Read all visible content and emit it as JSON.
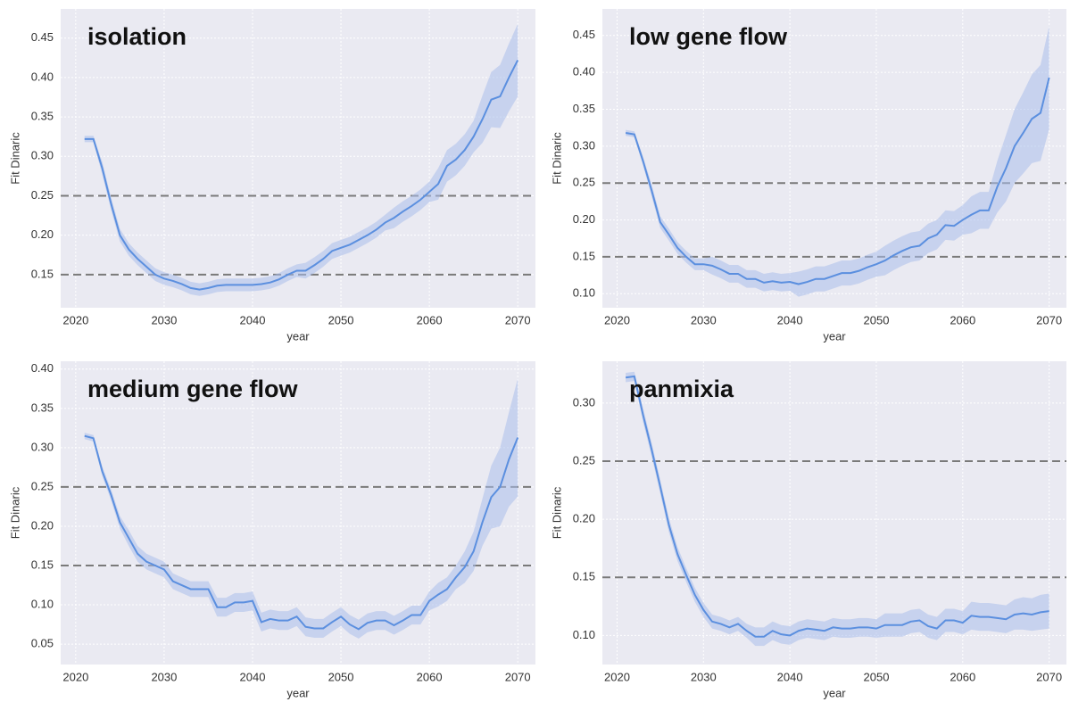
{
  "chart_data": [
    {
      "type": "line",
      "title": "isolation",
      "xlabel": "year",
      "ylabel": "Fit Dinaric",
      "x": [
        2021,
        2022,
        2023,
        2024,
        2025,
        2026,
        2027,
        2028,
        2029,
        2030,
        2031,
        2032,
        2033,
        2034,
        2035,
        2036,
        2037,
        2038,
        2039,
        2040,
        2041,
        2042,
        2043,
        2044,
        2045,
        2046,
        2047,
        2048,
        2049,
        2050,
        2051,
        2052,
        2053,
        2054,
        2055,
        2056,
        2057,
        2058,
        2059,
        2060,
        2061,
        2062,
        2063,
        2064,
        2065,
        2066,
        2067,
        2068,
        2069,
        2070
      ],
      "values": [
        0.322,
        0.322,
        0.285,
        0.24,
        0.2,
        0.182,
        0.17,
        0.16,
        0.15,
        0.145,
        0.142,
        0.138,
        0.133,
        0.131,
        0.133,
        0.136,
        0.137,
        0.137,
        0.137,
        0.137,
        0.138,
        0.14,
        0.144,
        0.15,
        0.155,
        0.155,
        0.162,
        0.17,
        0.18,
        0.184,
        0.188,
        0.194,
        0.2,
        0.207,
        0.216,
        0.222,
        0.23,
        0.237,
        0.245,
        0.255,
        0.265,
        0.288,
        0.296,
        0.308,
        0.325,
        0.347,
        0.372,
        0.376,
        0.4,
        0.422
      ],
      "lower": [
        0.318,
        0.318,
        0.277,
        0.232,
        0.192,
        0.174,
        0.162,
        0.152,
        0.142,
        0.137,
        0.134,
        0.13,
        0.125,
        0.123,
        0.125,
        0.128,
        0.129,
        0.129,
        0.129,
        0.129,
        0.13,
        0.132,
        0.136,
        0.142,
        0.147,
        0.145,
        0.152,
        0.16,
        0.17,
        0.174,
        0.178,
        0.184,
        0.19,
        0.197,
        0.206,
        0.209,
        0.217,
        0.224,
        0.232,
        0.242,
        0.245,
        0.268,
        0.276,
        0.288,
        0.305,
        0.317,
        0.337,
        0.336,
        0.357,
        0.376
      ],
      "upper": [
        0.326,
        0.326,
        0.293,
        0.248,
        0.208,
        0.19,
        0.178,
        0.168,
        0.158,
        0.153,
        0.15,
        0.146,
        0.141,
        0.139,
        0.141,
        0.144,
        0.145,
        0.145,
        0.145,
        0.145,
        0.146,
        0.148,
        0.152,
        0.158,
        0.163,
        0.165,
        0.172,
        0.18,
        0.19,
        0.194,
        0.198,
        0.204,
        0.21,
        0.217,
        0.226,
        0.235,
        0.243,
        0.25,
        0.258,
        0.268,
        0.285,
        0.308,
        0.316,
        0.328,
        0.345,
        0.377,
        0.407,
        0.416,
        0.443,
        0.468
      ],
      "color": "#5b8fdf",
      "band_color": "#a9bdeb",
      "hlines": [
        0.15,
        0.25
      ],
      "grid": true,
      "xlim": [
        2018.3,
        2072
      ],
      "xticks": [
        2020,
        2030,
        2040,
        2050,
        2060,
        2070
      ],
      "ylim": [
        0.108,
        0.487
      ],
      "yticks": [
        0.15,
        {
          "value": 0.2,
          "label": "0.20"
        },
        0.25,
        {
          "value": 0.3,
          "label": "0.30"
        },
        0.35,
        {
          "value": 0.4,
          "label": "0.40"
        },
        0.45
      ]
    },
    {
      "type": "line",
      "title": "low gene flow",
      "xlabel": "year",
      "ylabel": "Fit Dinaric",
      "x": [
        2021,
        2022,
        2023,
        2024,
        2025,
        2026,
        2027,
        2028,
        2029,
        2030,
        2031,
        2032,
        2033,
        2034,
        2035,
        2036,
        2037,
        2038,
        2039,
        2040,
        2041,
        2042,
        2043,
        2044,
        2045,
        2046,
        2047,
        2048,
        2049,
        2050,
        2051,
        2052,
        2053,
        2054,
        2055,
        2056,
        2057,
        2058,
        2059,
        2060,
        2061,
        2062,
        2063,
        2064,
        2065,
        2066,
        2067,
        2068,
        2069,
        2070
      ],
      "values": [
        0.318,
        0.316,
        0.28,
        0.24,
        0.197,
        0.18,
        0.162,
        0.15,
        0.14,
        0.14,
        0.138,
        0.133,
        0.127,
        0.127,
        0.12,
        0.12,
        0.115,
        0.117,
        0.115,
        0.116,
        0.113,
        0.116,
        0.12,
        0.12,
        0.124,
        0.128,
        0.128,
        0.131,
        0.136,
        0.14,
        0.145,
        0.152,
        0.158,
        0.163,
        0.165,
        0.175,
        0.18,
        0.193,
        0.192,
        0.2,
        0.207,
        0.213,
        0.213,
        0.245,
        0.27,
        0.3,
        0.318,
        0.337,
        0.345,
        0.393
      ],
      "lower": [
        0.314,
        0.312,
        0.274,
        0.232,
        0.189,
        0.172,
        0.154,
        0.142,
        0.132,
        0.132,
        0.126,
        0.121,
        0.115,
        0.115,
        0.108,
        0.108,
        0.103,
        0.105,
        0.103,
        0.104,
        0.096,
        0.099,
        0.103,
        0.103,
        0.107,
        0.111,
        0.111,
        0.114,
        0.119,
        0.123,
        0.125,
        0.132,
        0.138,
        0.143,
        0.145,
        0.155,
        0.16,
        0.173,
        0.172,
        0.18,
        0.182,
        0.188,
        0.188,
        0.21,
        0.225,
        0.25,
        0.263,
        0.277,
        0.28,
        0.323
      ],
      "upper": [
        0.322,
        0.32,
        0.286,
        0.248,
        0.205,
        0.188,
        0.17,
        0.158,
        0.148,
        0.148,
        0.15,
        0.145,
        0.139,
        0.139,
        0.132,
        0.132,
        0.127,
        0.129,
        0.127,
        0.128,
        0.13,
        0.133,
        0.137,
        0.137,
        0.141,
        0.145,
        0.145,
        0.148,
        0.153,
        0.157,
        0.165,
        0.172,
        0.178,
        0.183,
        0.185,
        0.195,
        0.2,
        0.213,
        0.212,
        0.22,
        0.232,
        0.238,
        0.238,
        0.28,
        0.315,
        0.35,
        0.373,
        0.397,
        0.41,
        0.463
      ],
      "color": "#5b8fdf",
      "band_color": "#a9bdeb",
      "hlines": [
        0.15,
        0.25
      ],
      "grid": true,
      "xlim": [
        2018.3,
        2072
      ],
      "xticks": [
        2020,
        2030,
        2040,
        2050,
        2060,
        2070
      ],
      "ylim": [
        0.081,
        0.486
      ],
      "yticks": [
        {
          "value": 0.1,
          "label": "0.10"
        },
        0.15,
        {
          "value": 0.2,
          "label": "0.20"
        },
        0.25,
        {
          "value": 0.3,
          "label": "0.30"
        },
        0.35,
        {
          "value": 0.4,
          "label": "0.40"
        },
        0.45
      ]
    },
    {
      "type": "line",
      "title": "medium gene flow",
      "xlabel": "year",
      "ylabel": "Fit Dinaric",
      "x": [
        2021,
        2022,
        2023,
        2024,
        2025,
        2026,
        2027,
        2028,
        2029,
        2030,
        2031,
        2032,
        2033,
        2034,
        2035,
        2036,
        2037,
        2038,
        2039,
        2040,
        2041,
        2042,
        2043,
        2044,
        2045,
        2046,
        2047,
        2048,
        2049,
        2050,
        2051,
        2052,
        2053,
        2054,
        2055,
        2056,
        2057,
        2058,
        2059,
        2060,
        2061,
        2062,
        2063,
        2064,
        2065,
        2066,
        2067,
        2068,
        2069,
        2070
      ],
      "values": [
        0.315,
        0.312,
        0.27,
        0.24,
        0.205,
        0.185,
        0.165,
        0.155,
        0.15,
        0.145,
        0.13,
        0.125,
        0.12,
        0.12,
        0.12,
        0.097,
        0.097,
        0.103,
        0.103,
        0.105,
        0.078,
        0.082,
        0.08,
        0.08,
        0.085,
        0.072,
        0.07,
        0.07,
        0.078,
        0.085,
        0.075,
        0.069,
        0.077,
        0.08,
        0.08,
        0.074,
        0.08,
        0.087,
        0.087,
        0.105,
        0.113,
        0.12,
        0.135,
        0.148,
        0.168,
        0.205,
        0.237,
        0.25,
        0.285,
        0.313
      ],
      "lower": [
        0.311,
        0.308,
        0.264,
        0.233,
        0.197,
        0.175,
        0.155,
        0.145,
        0.14,
        0.135,
        0.12,
        0.115,
        0.11,
        0.11,
        0.11,
        0.085,
        0.085,
        0.091,
        0.091,
        0.093,
        0.066,
        0.07,
        0.068,
        0.068,
        0.073,
        0.06,
        0.058,
        0.058,
        0.066,
        0.073,
        0.063,
        0.057,
        0.065,
        0.068,
        0.068,
        0.062,
        0.068,
        0.075,
        0.075,
        0.093,
        0.098,
        0.105,
        0.12,
        0.128,
        0.143,
        0.175,
        0.197,
        0.2,
        0.225,
        0.238
      ],
      "upper": [
        0.319,
        0.316,
        0.276,
        0.247,
        0.213,
        0.195,
        0.175,
        0.165,
        0.16,
        0.155,
        0.14,
        0.135,
        0.13,
        0.13,
        0.13,
        0.109,
        0.109,
        0.115,
        0.115,
        0.117,
        0.09,
        0.094,
        0.092,
        0.092,
        0.097,
        0.084,
        0.082,
        0.082,
        0.09,
        0.097,
        0.087,
        0.081,
        0.089,
        0.092,
        0.092,
        0.086,
        0.092,
        0.099,
        0.099,
        0.117,
        0.128,
        0.135,
        0.15,
        0.168,
        0.193,
        0.235,
        0.277,
        0.3,
        0.345,
        0.388
      ],
      "color": "#5b8fdf",
      "band_color": "#a9bdeb",
      "hlines": [
        0.15,
        0.25
      ],
      "grid": true,
      "xlim": [
        2018.3,
        2072
      ],
      "xticks": [
        2020,
        2030,
        2040,
        2050,
        2060,
        2070
      ],
      "ylim": [
        0.024,
        0.41
      ],
      "yticks": [
        0.05,
        {
          "value": 0.1,
          "label": "0.10"
        },
        0.15,
        {
          "value": 0.2,
          "label": "0.20"
        },
        0.25,
        {
          "value": 0.3,
          "label": "0.30"
        },
        0.35,
        {
          "value": 0.4,
          "label": "0.40"
        }
      ]
    },
    {
      "type": "line",
      "title": "panmixia",
      "xlabel": "year",
      "ylabel": "Fit Dinaric",
      "x": [
        2021,
        2022,
        2023,
        2024,
        2025,
        2026,
        2027,
        2028,
        2029,
        2030,
        2031,
        2032,
        2033,
        2034,
        2035,
        2036,
        2037,
        2038,
        2039,
        2040,
        2041,
        2042,
        2043,
        2044,
        2045,
        2046,
        2047,
        2048,
        2049,
        2050,
        2051,
        2052,
        2053,
        2054,
        2055,
        2056,
        2057,
        2058,
        2059,
        2060,
        2061,
        2062,
        2063,
        2064,
        2065,
        2066,
        2067,
        2068,
        2069,
        2070
      ],
      "values": [
        0.322,
        0.323,
        0.29,
        0.26,
        0.228,
        0.195,
        0.17,
        0.152,
        0.135,
        0.122,
        0.112,
        0.11,
        0.107,
        0.11,
        0.104,
        0.099,
        0.099,
        0.104,
        0.101,
        0.1,
        0.104,
        0.106,
        0.105,
        0.104,
        0.107,
        0.106,
        0.106,
        0.107,
        0.107,
        0.106,
        0.109,
        0.109,
        0.109,
        0.112,
        0.113,
        0.108,
        0.106,
        0.113,
        0.113,
        0.111,
        0.117,
        0.116,
        0.116,
        0.115,
        0.114,
        0.118,
        0.119,
        0.118,
        0.12,
        0.121
      ],
      "lower": [
        0.318,
        0.319,
        0.284,
        0.254,
        0.222,
        0.189,
        0.164,
        0.146,
        0.129,
        0.116,
        0.106,
        0.104,
        0.101,
        0.104,
        0.098,
        0.091,
        0.091,
        0.096,
        0.093,
        0.092,
        0.096,
        0.098,
        0.097,
        0.096,
        0.099,
        0.098,
        0.098,
        0.099,
        0.099,
        0.098,
        0.099,
        0.099,
        0.099,
        0.102,
        0.103,
        0.098,
        0.096,
        0.103,
        0.103,
        0.101,
        0.105,
        0.104,
        0.104,
        0.103,
        0.102,
        0.105,
        0.105,
        0.104,
        0.105,
        0.106
      ],
      "upper": [
        0.326,
        0.327,
        0.296,
        0.266,
        0.234,
        0.201,
        0.176,
        0.158,
        0.141,
        0.128,
        0.118,
        0.116,
        0.113,
        0.116,
        0.11,
        0.107,
        0.107,
        0.112,
        0.109,
        0.108,
        0.112,
        0.114,
        0.113,
        0.112,
        0.115,
        0.114,
        0.114,
        0.115,
        0.115,
        0.114,
        0.119,
        0.119,
        0.119,
        0.122,
        0.123,
        0.118,
        0.116,
        0.123,
        0.123,
        0.121,
        0.129,
        0.128,
        0.128,
        0.127,
        0.126,
        0.131,
        0.133,
        0.132,
        0.135,
        0.136
      ],
      "color": "#5b8fdf",
      "band_color": "#a9bdeb",
      "hlines": [
        0.15,
        0.25
      ],
      "grid": true,
      "xlim": [
        2018.3,
        2072
      ],
      "xticks": [
        2020,
        2030,
        2040,
        2050,
        2060,
        2070
      ],
      "ylim": [
        0.075,
        0.336
      ],
      "yticks": [
        {
          "value": 0.1,
          "label": "0.10"
        },
        0.15,
        {
          "value": 0.2,
          "label": "0.20"
        },
        0.25,
        {
          "value": 0.3,
          "label": "0.30"
        }
      ]
    }
  ]
}
